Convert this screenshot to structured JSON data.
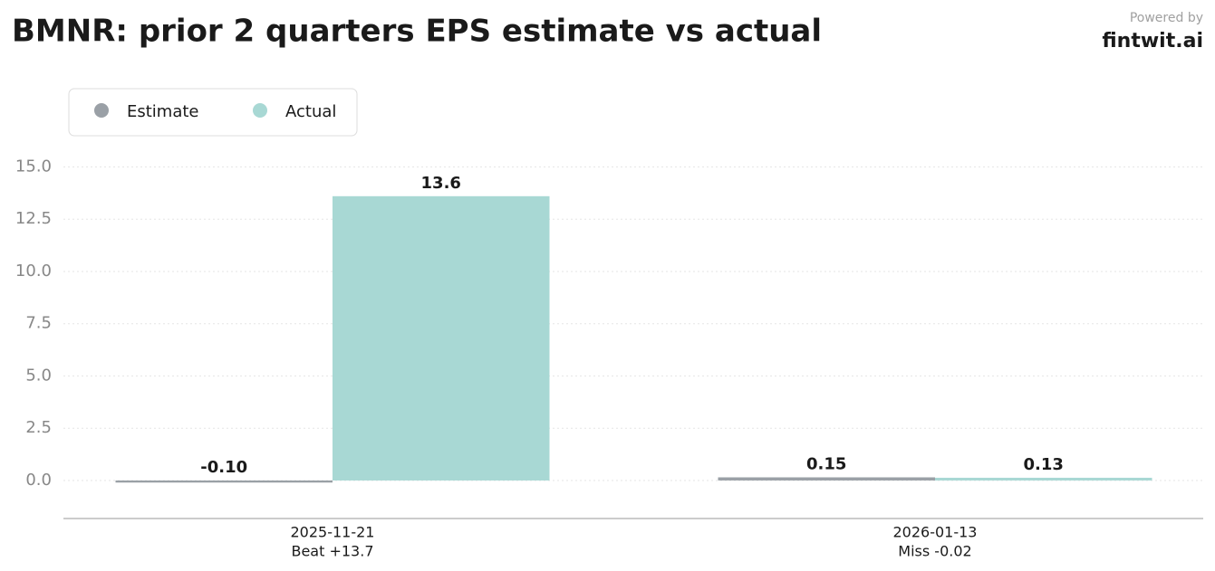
{
  "chart_data": {
    "type": "bar",
    "title": "BMNR: prior 2 quarters EPS estimate vs actual",
    "powered_by": "Powered by",
    "brand": "fintwit.ai",
    "categories": [
      "2025-11-21",
      "2026-01-13"
    ],
    "category_notes": [
      "Beat +13.7",
      "Miss -0.02"
    ],
    "series": [
      {
        "name": "Estimate",
        "color": "#9aa0a6",
        "values": [
          -0.1,
          0.15
        ],
        "value_labels": [
          "-0.10",
          "0.15"
        ]
      },
      {
        "name": "Actual",
        "color": "#a8d8d4",
        "values": [
          13.6,
          0.13
        ],
        "value_labels": [
          "13.6",
          "0.13"
        ]
      }
    ],
    "ylim": [
      -1.82,
      15.8
    ],
    "yticks": [
      {
        "value": 0,
        "label": "0.0"
      },
      2.5,
      {
        "value": 5,
        "label": "5.0"
      },
      7.5,
      {
        "value": 10,
        "label": "10.0"
      },
      12.5,
      {
        "value": 15,
        "label": "15.0"
      }
    ],
    "grid": true,
    "legend": "top-left"
  }
}
